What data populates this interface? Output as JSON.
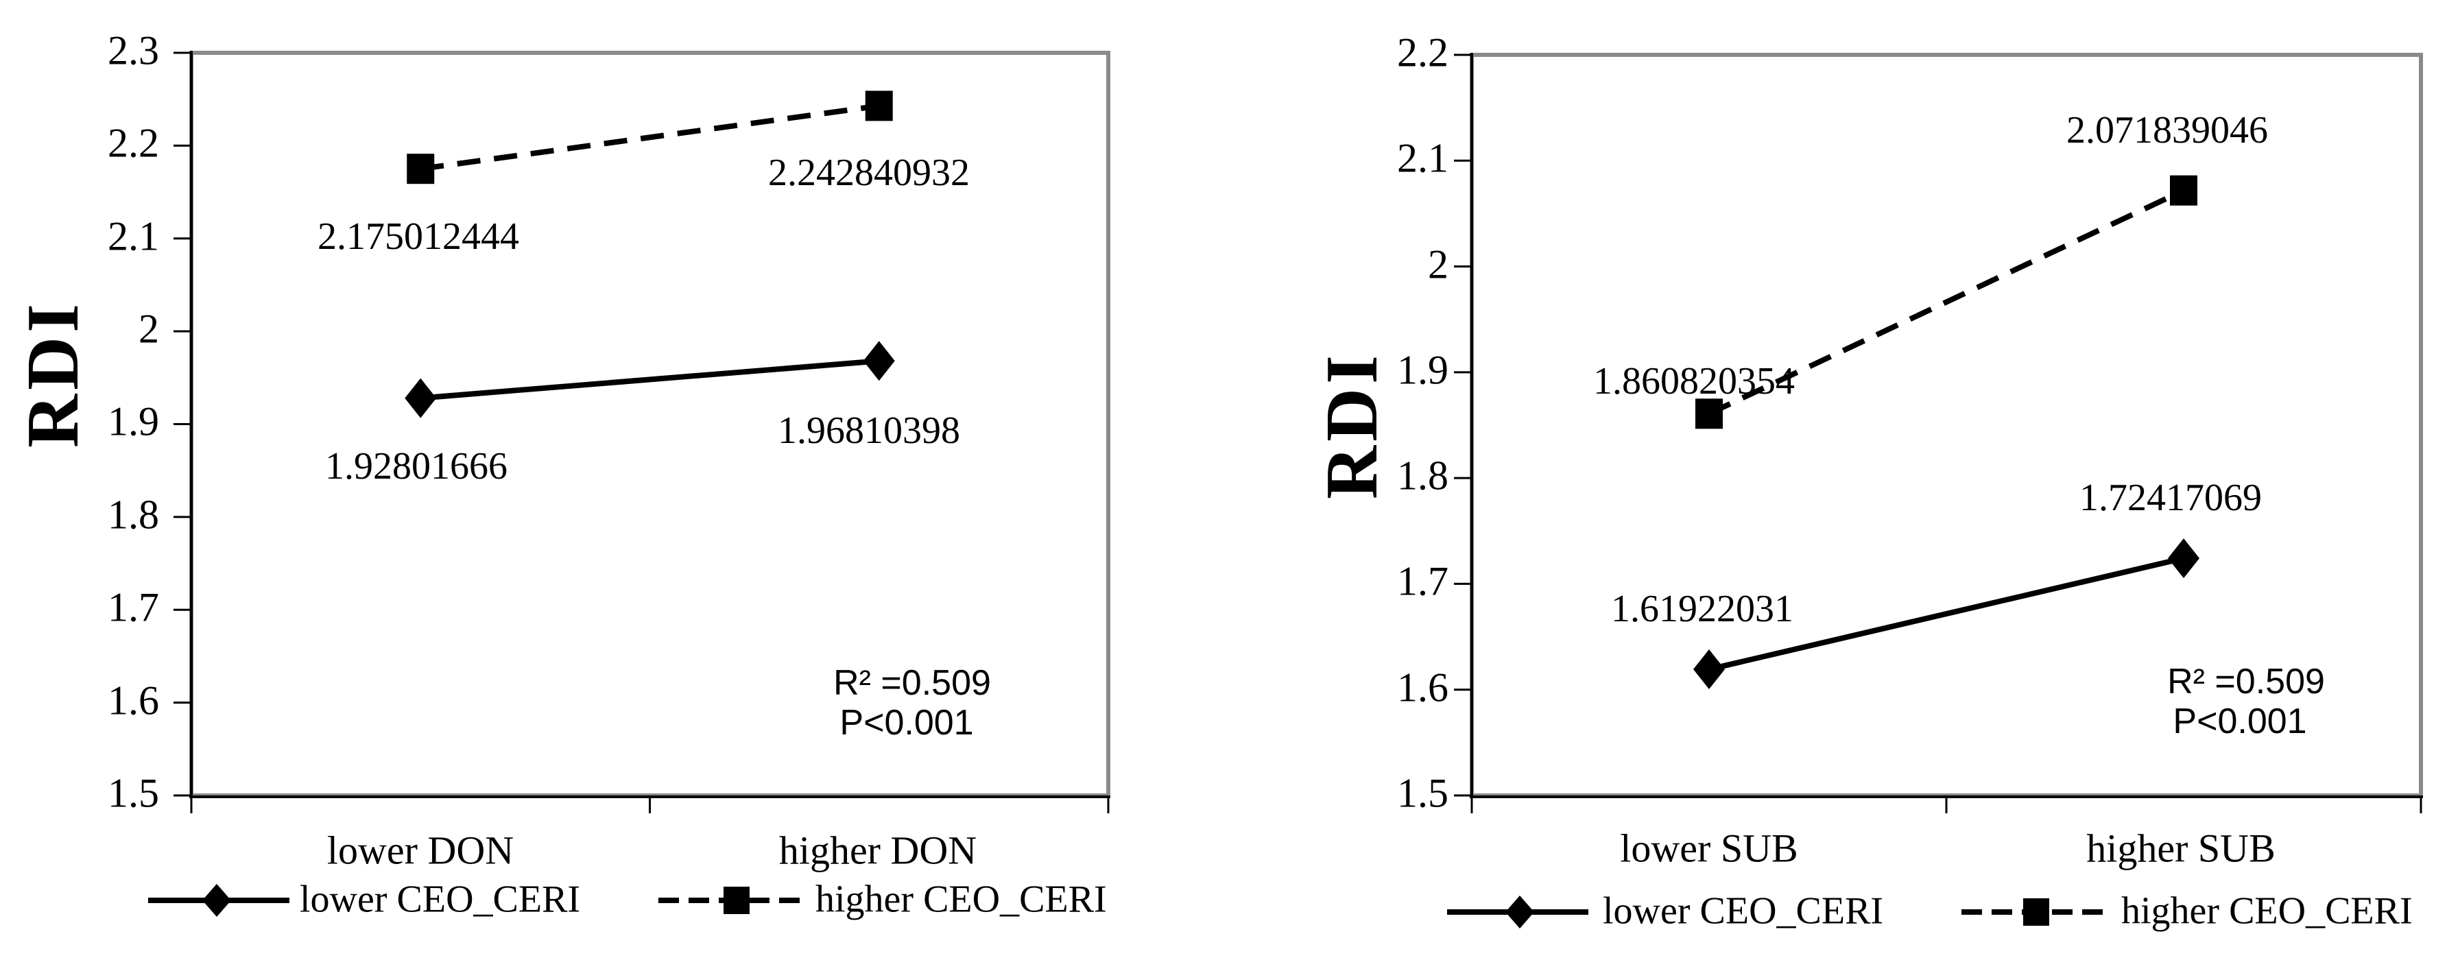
{
  "chart_data": [
    {
      "type": "line",
      "title": "",
      "xlabel": "",
      "ylabel": "RDI",
      "categories": [
        "lower DON",
        "higher DON"
      ],
      "y_tick_labels": [
        "2.3",
        "2.2",
        "2.1",
        "2",
        "1.9",
        "1.8",
        "1.7",
        "1.6",
        "1.5"
      ],
      "ylim": [
        1.5,
        2.3
      ],
      "grid": false,
      "legend_position": "bottom",
      "series": [
        {
          "name": "lower CEO_CERI",
          "marker": "diamond",
          "line": "solid",
          "values": [
            1.92801666,
            1.96810398
          ],
          "labels": [
            "1.92801666",
            "1.96810398"
          ]
        },
        {
          "name": "higher CEO_CERI",
          "marker": "square",
          "line": "dashed",
          "values": [
            2.175012444,
            2.242840932
          ],
          "labels": [
            "2.175012444",
            "2.242840932"
          ]
        }
      ],
      "annotations": {
        "r2": "R² =0.509",
        "p": "P<0.001"
      }
    },
    {
      "type": "line",
      "title": "",
      "xlabel": "",
      "ylabel": "RDI",
      "categories": [
        "lower SUB",
        "higher SUB"
      ],
      "y_tick_labels": [
        "2.2",
        "2.1",
        "2",
        "1.9",
        "1.8",
        "1.7",
        "1.6",
        "1.5"
      ],
      "ylim": [
        1.5,
        2.2
      ],
      "grid": false,
      "legend_position": "bottom",
      "series": [
        {
          "name": "lower CEO_CERI",
          "marker": "diamond",
          "line": "solid",
          "values": [
            1.61922031,
            1.72417069
          ],
          "labels": [
            "1.61922031",
            "1.72417069"
          ]
        },
        {
          "name": "higher CEO_CERI",
          "marker": "square",
          "line": "dashed",
          "values": [
            1.860820354,
            2.071839046
          ],
          "labels": [
            "1.860820354",
            "2.071839046"
          ]
        }
      ],
      "annotations": {
        "r2": "R² =0.509",
        "p": "P<0.001"
      }
    }
  ],
  "colors": {
    "line": "#000000",
    "plot_border": "#8a8a8a",
    "background": "#ffffff"
  }
}
